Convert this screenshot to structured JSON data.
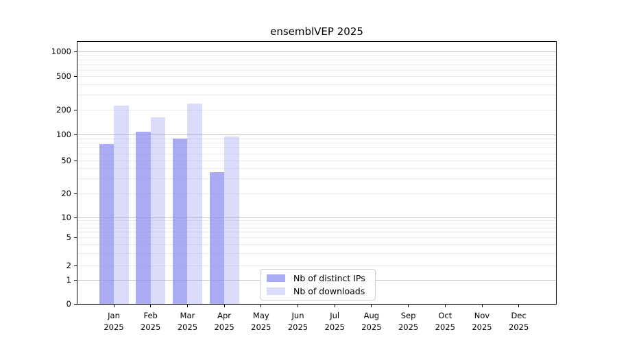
{
  "chart_data": {
    "type": "bar",
    "title": "ensemblVEP 2025",
    "categories": [
      "Jan 2025",
      "Feb 2025",
      "Mar 2025",
      "Apr 2025",
      "May 2025",
      "Jun 2025",
      "Jul 2025",
      "Aug 2025",
      "Sep 2025",
      "Oct 2025",
      "Nov 2025",
      "Dec 2025"
    ],
    "series": [
      {
        "name": "Nb of distinct IPs",
        "color": "#8888ee",
        "opacity": 0.7,
        "values": [
          77,
          109,
          89,
          36,
          null,
          null,
          null,
          null,
          null,
          null,
          null,
          null
        ]
      },
      {
        "name": "Nb of downloads",
        "color": "#8888ee",
        "opacity": 0.3,
        "values": [
          223,
          162,
          238,
          94,
          null,
          null,
          null,
          null,
          null,
          null,
          null,
          null
        ]
      }
    ],
    "xlabel": "",
    "ylabel": "",
    "yaxis": {
      "scale": "log-like with 0 baseline",
      "ticks": [
        0,
        1,
        2,
        5,
        10,
        20,
        50,
        100,
        200,
        500,
        1000
      ],
      "range": [
        0,
        1400
      ]
    },
    "legend": {
      "position": "lower center",
      "entries": [
        "Nb of distinct IPs",
        "Nb of downloads"
      ]
    },
    "grid": "on",
    "style": {
      "major_grid_color": "#c3c3c3",
      "minor_grid_color": "#ebebeb",
      "spine_color": "#000000",
      "text_color": "#000000",
      "background": "#ffffff"
    }
  }
}
